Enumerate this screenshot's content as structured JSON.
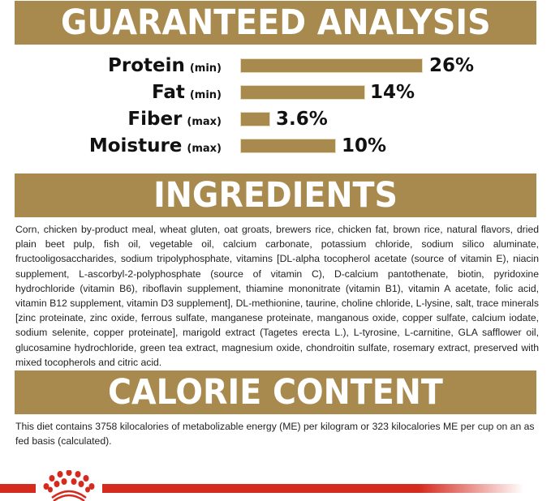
{
  "guaranteed_analysis": {
    "title": "GUARANTEED ANALYSIS",
    "rows": [
      {
        "nutrient": "Protein",
        "qualifier": "(min)",
        "value": "26%",
        "percent": 26
      },
      {
        "nutrient": "Fat",
        "qualifier": "(min)",
        "value": "14%",
        "percent": 14
      },
      {
        "nutrient": "Fiber",
        "qualifier": "(max)",
        "value": "3.6%",
        "percent": 3.6
      },
      {
        "nutrient": "Moisture",
        "qualifier": "(max)",
        "value": "10%",
        "percent": 10
      }
    ]
  },
  "ingredients": {
    "title": "INGREDIENTS",
    "text": "Corn, chicken by-product meal, wheat gluten, oat groats, brewers rice, chicken fat, brown rice, natural flavors, dried plain beet pulp, fish oil, vegetable oil, calcium carbonate, potassium chloride, sodium silico aluminate, fructooligosaccharides, sodium tripolyphosphate, vitamins [DL-alpha tocopherol acetate (source of vitamin E), niacin supplement, L-ascorbyl-2-polyphosphate (source of vitamin C), D-calcium pantothenate, biotin, pyridoxine hydrochloride (vitamin B6), riboflavin supplement, thiamine mononitrate (vitamin B1), vitamin A acetate, folic acid, vitamin B12 supplement, vitamin D3 supplement], DL-methionine, taurine, choline chloride, L-lysine, salt, trace minerals [zinc proteinate, zinc oxide, ferrous sulfate, manganese proteinate, manganous oxide, copper sulfate, calcium iodate, sodium selenite, copper proteinate], marigold extract (Tagetes erecta L.), L-tyrosine, L-carnitine, GLA safflower oil, glucosamine hydrochloride, green tea extract, magnesium oxide, chondroitin sulfate, rosemary extract, preserved with mixed tocopherols and citric acid."
  },
  "calorie_content": {
    "title": "CALORIE CONTENT",
    "text": "This diet contains 3758 kilocalories of metabolizable energy (ME) per kilogram or 323 kilocalories ME per cup on an as fed basis (calculated)."
  },
  "colors": {
    "band": "#a88a4e",
    "brand_red": "#d52b1e"
  },
  "footer": {
    "logo_icon": "royal-canin-crown-icon"
  }
}
